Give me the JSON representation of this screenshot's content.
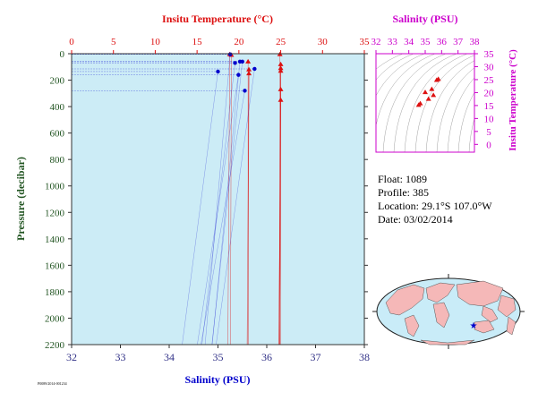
{
  "chart_data": {
    "type": "scatter",
    "main": {
      "x_top_label": "Insitu Temperature (°C)",
      "x_bottom_label": "Salinity (PSU)",
      "y_label": "Pressure (decibar)",
      "temp_range": [
        0,
        35
      ],
      "temp_ticks": [
        0,
        5,
        10,
        15,
        20,
        25,
        30,
        35
      ],
      "sal_range": [
        32,
        38
      ],
      "sal_ticks": [
        32,
        33,
        34,
        35,
        36,
        37,
        38
      ],
      "pressure_range": [
        0,
        2200
      ],
      "pressure_ticks": [
        0,
        200,
        400,
        600,
        800,
        1000,
        1200,
        1400,
        1600,
        1800,
        2000,
        2200
      ],
      "temperature_points": [
        {
          "t": 18.9,
          "p": 5
        },
        {
          "t": 19.1,
          "p": 10
        },
        {
          "t": 21.1,
          "p": 60
        },
        {
          "t": 21.2,
          "p": 120
        },
        {
          "t": 21.2,
          "p": 150
        },
        {
          "t": 24.9,
          "p": 5
        },
        {
          "t": 25.0,
          "p": 80
        },
        {
          "t": 25.0,
          "p": 110
        },
        {
          "t": 25.0,
          "p": 130
        },
        {
          "t": 25.0,
          "p": 270
        },
        {
          "t": 25.0,
          "p": 350
        }
      ],
      "salinity_points": [
        {
          "s": 35.25,
          "p": 5
        },
        {
          "s": 35.45,
          "p": 60
        },
        {
          "s": 35.5,
          "p": 60
        },
        {
          "s": 35.35,
          "p": 70
        },
        {
          "s": 35.0,
          "p": 135
        },
        {
          "s": 35.75,
          "p": 115
        },
        {
          "s": 35.42,
          "p": 160
        },
        {
          "s": 35.55,
          "p": 280
        }
      ]
    },
    "inset": {
      "x_label": "Salinity (PSU)",
      "y_label": "Insitu Temperature (°C)",
      "sal_range": [
        32,
        38
      ],
      "sal_ticks": [
        32,
        33,
        34,
        35,
        36,
        37,
        38
      ],
      "temp_range": [
        -3,
        35
      ],
      "temp_ticks": [
        0,
        5,
        10,
        15,
        20,
        25,
        30,
        35
      ],
      "ts_points": [
        {
          "s": 35.8,
          "t": 25.2
        },
        {
          "s": 35.7,
          "t": 24.8
        },
        {
          "s": 35.4,
          "t": 21.3
        },
        {
          "s": 35.5,
          "t": 19.0
        },
        {
          "s": 35.0,
          "t": 20.1
        },
        {
          "s": 35.2,
          "t": 17.5
        },
        {
          "s": 34.7,
          "t": 15.8
        },
        {
          "s": 34.6,
          "t": 15.2
        }
      ]
    },
    "map_marker": {
      "lat": -29.1,
      "lon": -107.0
    }
  },
  "info": {
    "float": "Float:  1089",
    "profile": "Profile:  385",
    "location": "Location:  29.1°S  107.0°W",
    "date": "Date:  03/02/2014"
  },
  "footer_code": "P0089/2014-001234",
  "colors": {
    "temperature": "#dd1111",
    "salinity": "#0000cc",
    "inset_axis": "#cc00cc",
    "plot_bg": "#ccecf6",
    "axis_text": "#333388"
  }
}
